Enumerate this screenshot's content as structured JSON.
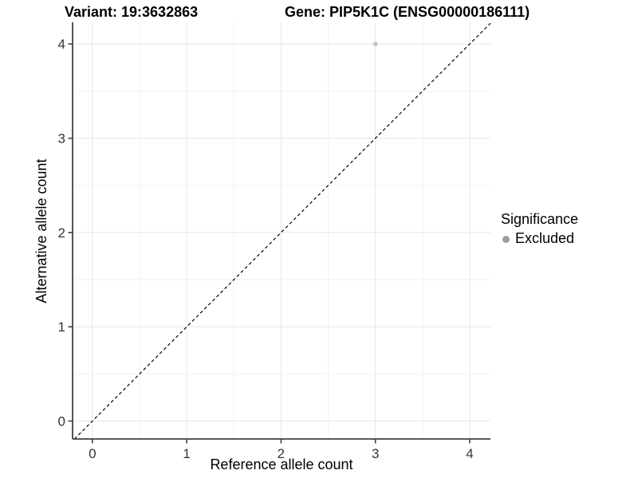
{
  "chart_data": {
    "type": "scatter",
    "titles": {
      "left": "Variant: 19:3632863",
      "right": "Gene: PIP5K1C (ENSG00000186111)"
    },
    "xlabel": "Reference allele count",
    "ylabel": "Alternative allele count",
    "xlim": [
      -0.21,
      4.22
    ],
    "ylim": [
      -0.19,
      4.23
    ],
    "x_major_ticks": [
      0,
      1,
      2,
      3,
      4
    ],
    "y_major_ticks": [
      0,
      1,
      2,
      3,
      4
    ],
    "x_minor_gridlines": [
      0.5,
      1.5,
      2.5,
      3.5
    ],
    "y_minor_gridlines": [
      0.5,
      1.5,
      2.5,
      3.5
    ],
    "grid": true,
    "legend_position": "right",
    "legend_title": "Significance",
    "series": [
      {
        "name": "Excluded",
        "color": "#c2c2c2",
        "legend_color": "#9e9e9e",
        "points": [
          {
            "x": 3,
            "y": 4
          }
        ]
      }
    ],
    "reference_line": {
      "kind": "identity y=x",
      "style": "dashed",
      "color": "#000000"
    }
  },
  "colors": {
    "grid_major": "#e6e6e6",
    "grid_minor": "#f2f2f2",
    "axis_line": "#404040",
    "tick_label": "#333333",
    "background": "#ffffff"
  }
}
